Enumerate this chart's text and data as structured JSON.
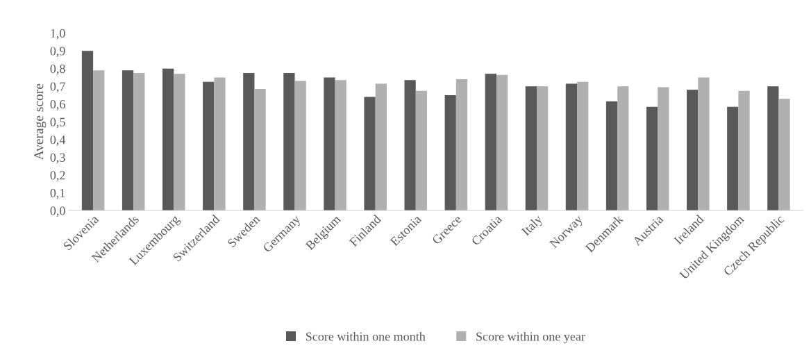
{
  "chart_data": {
    "type": "bar",
    "ylabel": "Average score",
    "categories": [
      "Slovenia",
      "Netherlands",
      "Luxembourg",
      "Switzerland",
      "Sweden",
      "Germany",
      "Belgium",
      "Finland",
      "Estonia",
      "Greece",
      "Croatia",
      "Italy",
      "Norway",
      "Denmark",
      "Austria",
      "Ireland",
      "United Kingdom",
      "Czech Republic"
    ],
    "series": [
      {
        "name": "Score within one month",
        "color": "#595959",
        "values": [
          0.9,
          0.79,
          0.8,
          0.725,
          0.775,
          0.775,
          0.75,
          0.64,
          0.735,
          0.65,
          0.77,
          0.7,
          0.715,
          0.615,
          0.585,
          0.68,
          0.585,
          0.7
        ]
      },
      {
        "name": "Score within one year",
        "color": "#b0b0b0",
        "values": [
          0.79,
          0.775,
          0.77,
          0.75,
          0.685,
          0.73,
          0.735,
          0.715,
          0.675,
          0.74,
          0.765,
          0.7,
          0.725,
          0.7,
          0.695,
          0.75,
          0.675,
          0.63
        ]
      }
    ],
    "ylim": [
      0,
      1.0
    ],
    "yticks": [
      {
        "value": 0,
        "label": "0,0"
      },
      {
        "value": 0.1,
        "label": "0,1"
      },
      {
        "value": 0.2,
        "label": "0,2"
      },
      {
        "value": 0.3,
        "label": "0,3"
      },
      {
        "value": 0.4,
        "label": "0,4"
      },
      {
        "value": 0.5,
        "label": "0,5"
      },
      {
        "value": 0.6,
        "label": "0,6"
      },
      {
        "value": 0.7,
        "label": "0,7"
      },
      {
        "value": 0.8,
        "label": "0,8"
      },
      {
        "value": 0.9,
        "label": "0,9"
      },
      {
        "value": 1.0,
        "label": "1,0"
      }
    ],
    "grid": false,
    "legend": "bottom"
  }
}
